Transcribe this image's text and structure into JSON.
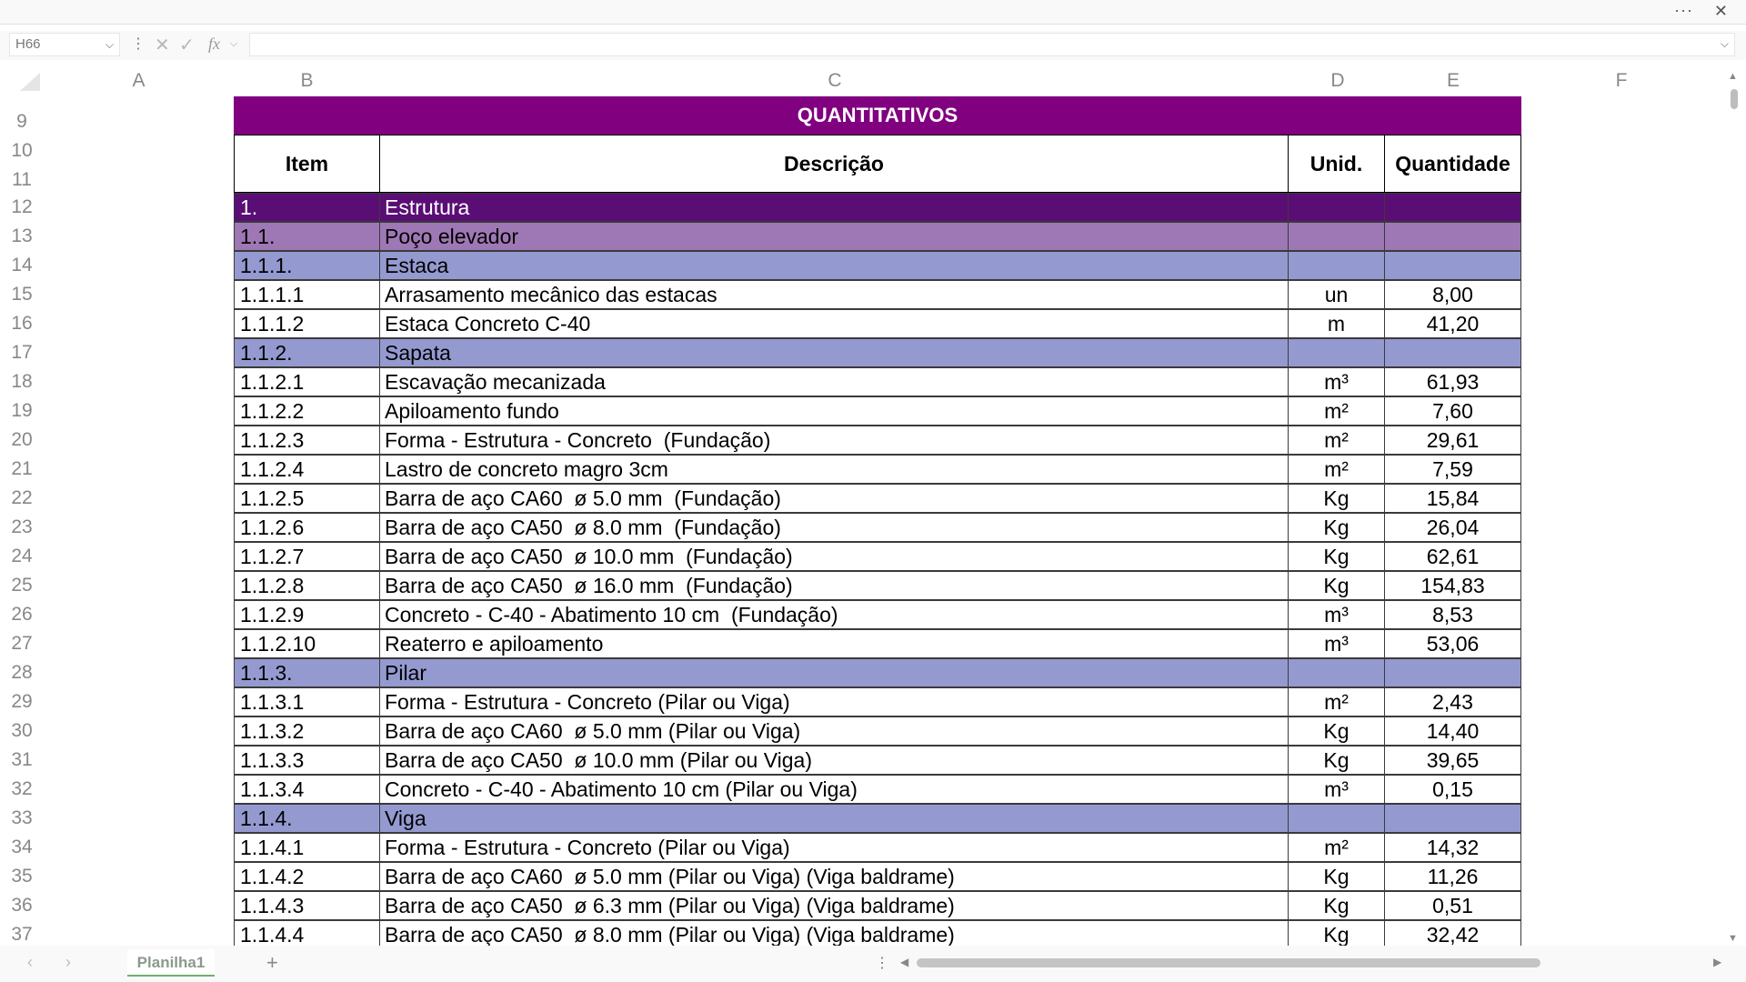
{
  "window": {
    "more_icon": "ellipsis-icon",
    "close_icon": "close-icon"
  },
  "formula_bar": {
    "cell_ref": "H66",
    "fx": "fx",
    "value": ""
  },
  "columns": [
    "A",
    "B",
    "C",
    "D",
    "E",
    "F"
  ],
  "row_numbers": [
    "9",
    "10",
    "11",
    "12",
    "13",
    "14",
    "15",
    "16",
    "17",
    "18",
    "19",
    "20",
    "21",
    "22",
    "23",
    "24",
    "25",
    "26",
    "27",
    "28",
    "29",
    "30",
    "31",
    "32",
    "33",
    "34",
    "35",
    "36",
    "37"
  ],
  "sheet": {
    "title": "QUANTITATIVOS",
    "headers": {
      "item": "Item",
      "descricao": "Descrição",
      "unid": "Unid.",
      "quantidade": "Quantidade"
    },
    "rows": [
      {
        "item": "1.",
        "desc": "Estrutura",
        "unid": "",
        "qty": "",
        "level": 1
      },
      {
        "item": "1.1.",
        "desc": "Poço elevador",
        "unid": "",
        "qty": "",
        "level": 2
      },
      {
        "item": "1.1.1.",
        "desc": "Estaca",
        "unid": "",
        "qty": "",
        "level": 3
      },
      {
        "item": "1.1.1.1",
        "desc": "Arrasamento mecânico das estacas",
        "unid": "un",
        "qty": "8,00",
        "level": 0
      },
      {
        "item": "1.1.1.2",
        "desc": "Estaca Concreto C-40",
        "unid": "m",
        "qty": "41,20",
        "level": 0
      },
      {
        "item": "1.1.2.",
        "desc": "Sapata",
        "unid": "",
        "qty": "",
        "level": 3
      },
      {
        "item": "1.1.2.1",
        "desc": "Escavação mecanizada",
        "unid": "m³",
        "qty": "61,93",
        "level": 0
      },
      {
        "item": "1.1.2.2",
        "desc": "Apiloamento fundo",
        "unid": "m²",
        "qty": "7,60",
        "level": 0
      },
      {
        "item": "1.1.2.3",
        "desc": "Forma - Estrutura - Concreto  (Fundação)",
        "unid": "m²",
        "qty": "29,61",
        "level": 0
      },
      {
        "item": "1.1.2.4",
        "desc": "Lastro de concreto magro 3cm",
        "unid": "m²",
        "qty": "7,59",
        "level": 0
      },
      {
        "item": "1.1.2.5",
        "desc": "Barra de aço CA60  ø 5.0 mm  (Fundação)",
        "unid": "Kg",
        "qty": "15,84",
        "level": 0
      },
      {
        "item": "1.1.2.6",
        "desc": "Barra de aço CA50  ø 8.0 mm  (Fundação)",
        "unid": "Kg",
        "qty": "26,04",
        "level": 0
      },
      {
        "item": "1.1.2.7",
        "desc": "Barra de aço CA50  ø 10.0 mm  (Fundação)",
        "unid": "Kg",
        "qty": "62,61",
        "level": 0
      },
      {
        "item": "1.1.2.8",
        "desc": "Barra de aço CA50  ø 16.0 mm  (Fundação)",
        "unid": "Kg",
        "qty": "154,83",
        "level": 0
      },
      {
        "item": "1.1.2.9",
        "desc": "Concreto - C-40 - Abatimento 10 cm  (Fundação)",
        "unid": "m³",
        "qty": "8,53",
        "level": 0
      },
      {
        "item": "1.1.2.10",
        "desc": "Reaterro e apiloamento",
        "unid": "m³",
        "qty": "53,06",
        "level": 0
      },
      {
        "item": "1.1.3.",
        "desc": "Pilar",
        "unid": "",
        "qty": "",
        "level": 3
      },
      {
        "item": "1.1.3.1",
        "desc": "Forma - Estrutura - Concreto (Pilar ou Viga)",
        "unid": "m²",
        "qty": "2,43",
        "level": 0
      },
      {
        "item": "1.1.3.2",
        "desc": "Barra de aço CA60  ø 5.0 mm (Pilar ou Viga)",
        "unid": "Kg",
        "qty": "14,40",
        "level": 0
      },
      {
        "item": "1.1.3.3",
        "desc": "Barra de aço CA50  ø 10.0 mm (Pilar ou Viga)",
        "unid": "Kg",
        "qty": "39,65",
        "level": 0
      },
      {
        "item": "1.1.3.4",
        "desc": "Concreto - C-40 - Abatimento 10 cm (Pilar ou Viga)",
        "unid": "m³",
        "qty": "0,15",
        "level": 0
      },
      {
        "item": "1.1.4.",
        "desc": "Viga",
        "unid": "",
        "qty": "",
        "level": 3
      },
      {
        "item": "1.1.4.1",
        "desc": "Forma - Estrutura - Concreto (Pilar ou Viga)",
        "unid": "m²",
        "qty": "14,32",
        "level": 0
      },
      {
        "item": "1.1.4.2",
        "desc": "Barra de aço CA60  ø 5.0 mm (Pilar ou Viga) (Viga baldrame)",
        "unid": "Kg",
        "qty": "11,26",
        "level": 0
      },
      {
        "item": "1.1.4.3",
        "desc": "Barra de aço CA50  ø 6.3 mm (Pilar ou Viga) (Viga baldrame)",
        "unid": "Kg",
        "qty": "0,51",
        "level": 0
      },
      {
        "item": "1.1.4.4",
        "desc": "Barra de aço CA50  ø 8.0 mm (Pilar ou Viga) (Viga baldrame)",
        "unid": "Kg",
        "qty": "32,42",
        "level": 0
      }
    ]
  },
  "colors": {
    "title_bg": "#800080",
    "level1_bg": "#5a0e75",
    "level2_bg": "#9e78b4",
    "level3_bg": "#949ad0",
    "tab_accent": "#6fae6f"
  },
  "sheet_tabs": [
    {
      "label": "Planilha1",
      "active": true
    }
  ],
  "add_sheet_icon": "plus-icon"
}
